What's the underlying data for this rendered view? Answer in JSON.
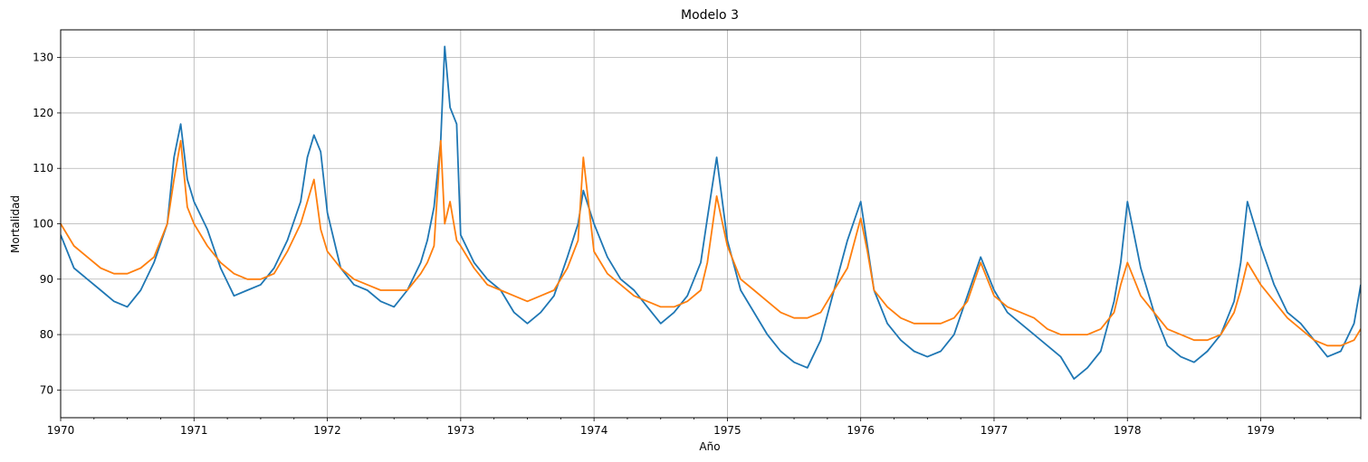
{
  "chart_data": {
    "type": "line",
    "title": "Modelo 3",
    "xlabel": "Año",
    "ylabel": "Mortalidad",
    "x_unit": "year",
    "xlim": [
      1970.0,
      1979.75
    ],
    "ylim": [
      65,
      135
    ],
    "x_ticks": [
      1970,
      1971,
      1972,
      1973,
      1974,
      1975,
      1976,
      1977,
      1978,
      1979
    ],
    "x_tick_labels": [
      "1970",
      "1971",
      "1972",
      "1973",
      "1974",
      "1975",
      "1976",
      "1977",
      "1978",
      "1979"
    ],
    "y_ticks": [
      70,
      80,
      90,
      100,
      110,
      120,
      130
    ],
    "y_tick_labels": [
      "70",
      "80",
      "90",
      "100",
      "110",
      "120",
      "130"
    ],
    "grid": true,
    "legend": "none",
    "series": [
      {
        "color": "#1f77b4",
        "x": [
          1970.0,
          1970.1,
          1970.2,
          1970.3,
          1970.4,
          1970.5,
          1970.6,
          1970.7,
          1970.8,
          1970.85,
          1970.9,
          1970.95,
          1971.0,
          1971.1,
          1971.2,
          1971.3,
          1971.4,
          1971.5,
          1971.6,
          1971.7,
          1971.8,
          1971.85,
          1971.9,
          1971.95,
          1972.0,
          1972.1,
          1972.2,
          1972.3,
          1972.4,
          1972.5,
          1972.6,
          1972.7,
          1972.75,
          1972.8,
          1972.85,
          1972.88,
          1972.92,
          1972.97,
          1973.0,
          1973.1,
          1973.2,
          1973.3,
          1973.4,
          1973.5,
          1973.6,
          1973.7,
          1973.8,
          1973.88,
          1973.92,
          1974.0,
          1974.1,
          1974.2,
          1974.3,
          1974.4,
          1974.5,
          1974.6,
          1974.7,
          1974.8,
          1974.85,
          1974.92,
          1975.0,
          1975.1,
          1975.2,
          1975.3,
          1975.4,
          1975.5,
          1975.6,
          1975.7,
          1975.8,
          1975.9,
          1976.0,
          1976.05,
          1976.1,
          1976.2,
          1976.3,
          1976.4,
          1976.5,
          1976.6,
          1976.7,
          1976.8,
          1976.9,
          1977.0,
          1977.1,
          1977.2,
          1977.3,
          1977.4,
          1977.5,
          1977.6,
          1977.7,
          1977.8,
          1977.9,
          1977.95,
          1978.0,
          1978.1,
          1978.2,
          1978.3,
          1978.4,
          1978.5,
          1978.6,
          1978.7,
          1978.8,
          1978.85,
          1978.9,
          1979.0,
          1979.1,
          1979.2,
          1979.3,
          1979.4,
          1979.5,
          1979.6,
          1979.7,
          1979.75
        ],
        "y": [
          98,
          92,
          90,
          88,
          86,
          85,
          88,
          93,
          100,
          112,
          118,
          108,
          104,
          99,
          92,
          87,
          88,
          89,
          92,
          97,
          104,
          112,
          116,
          113,
          102,
          92,
          89,
          88,
          86,
          85,
          88,
          93,
          97,
          103,
          115,
          132,
          121,
          118,
          98,
          93,
          90,
          88,
          84,
          82,
          84,
          87,
          94,
          100,
          106,
          100,
          94,
          90,
          88,
          85,
          82,
          84,
          87,
          93,
          101,
          112,
          97,
          88,
          84,
          80,
          77,
          75,
          74,
          79,
          88,
          97,
          104,
          96,
          88,
          82,
          79,
          77,
          76,
          77,
          80,
          87,
          94,
          88,
          84,
          82,
          80,
          78,
          76,
          72,
          74,
          77,
          86,
          93,
          104,
          92,
          84,
          78,
          76,
          75,
          77,
          80,
          86,
          93,
          104,
          96,
          89,
          84,
          82,
          79,
          76,
          77,
          82,
          89
        ]
      },
      {
        "color": "#ff7f0e",
        "x": [
          1970.0,
          1970.1,
          1970.2,
          1970.3,
          1970.4,
          1970.5,
          1970.6,
          1970.7,
          1970.8,
          1970.85,
          1970.9,
          1970.95,
          1971.0,
          1971.1,
          1971.2,
          1971.3,
          1971.4,
          1971.5,
          1971.6,
          1971.7,
          1971.8,
          1971.85,
          1971.9,
          1971.95,
          1972.0,
          1972.1,
          1972.2,
          1972.3,
          1972.4,
          1972.5,
          1972.6,
          1972.7,
          1972.75,
          1972.8,
          1972.85,
          1972.88,
          1972.92,
          1972.97,
          1973.0,
          1973.1,
          1973.2,
          1973.3,
          1973.4,
          1973.5,
          1973.6,
          1973.7,
          1973.8,
          1973.88,
          1973.92,
          1974.0,
          1974.1,
          1974.2,
          1974.3,
          1974.4,
          1974.5,
          1974.6,
          1974.7,
          1974.8,
          1974.85,
          1974.92,
          1975.0,
          1975.1,
          1975.2,
          1975.3,
          1975.4,
          1975.5,
          1975.6,
          1975.7,
          1975.8,
          1975.9,
          1976.0,
          1976.05,
          1976.1,
          1976.2,
          1976.3,
          1976.4,
          1976.5,
          1976.6,
          1976.7,
          1976.8,
          1976.9,
          1977.0,
          1977.1,
          1977.2,
          1977.3,
          1977.4,
          1977.5,
          1977.6,
          1977.7,
          1977.8,
          1977.9,
          1977.95,
          1978.0,
          1978.1,
          1978.2,
          1978.3,
          1978.4,
          1978.5,
          1978.6,
          1978.7,
          1978.8,
          1978.85,
          1978.9,
          1979.0,
          1979.1,
          1979.2,
          1979.3,
          1979.4,
          1979.5,
          1979.6,
          1979.7,
          1979.75
        ],
        "y": [
          100,
          96,
          94,
          92,
          91,
          91,
          92,
          94,
          100,
          108,
          115,
          103,
          100,
          96,
          93,
          91,
          90,
          90,
          91,
          95,
          100,
          104,
          108,
          99,
          95,
          92,
          90,
          89,
          88,
          88,
          88,
          91,
          93,
          96,
          115,
          100,
          104,
          97,
          96,
          92,
          89,
          88,
          87,
          86,
          87,
          88,
          92,
          97,
          112,
          95,
          91,
          89,
          87,
          86,
          85,
          85,
          86,
          88,
          93,
          105,
          96,
          90,
          88,
          86,
          84,
          83,
          83,
          84,
          88,
          92,
          101,
          95,
          88,
          85,
          83,
          82,
          82,
          82,
          83,
          86,
          93,
          87,
          85,
          84,
          83,
          81,
          80,
          80,
          80,
          81,
          84,
          89,
          93,
          87,
          84,
          81,
          80,
          79,
          79,
          80,
          84,
          88,
          93,
          89,
          86,
          83,
          81,
          79,
          78,
          78,
          79,
          81
        ]
      }
    ]
  }
}
